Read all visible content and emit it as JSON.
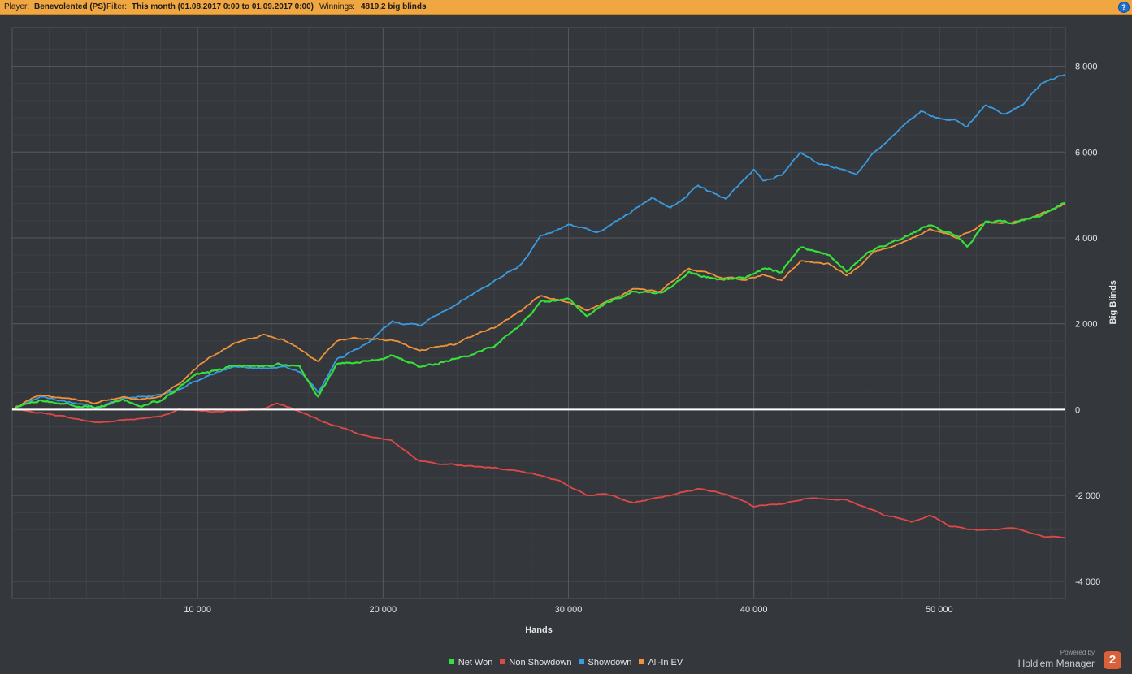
{
  "header": {
    "player_label": "Player:",
    "player_value": "Benevolented (PS)",
    "filter_label": "Filter:",
    "filter_value": "This month (01.08.2017 0:00 to 01.09.2017 0:00)",
    "winnings_label": "Winnings:",
    "winnings_value": "4819,2 big blinds",
    "help_symbol": "?",
    "help_icon": "help-circle-icon"
  },
  "branding": {
    "powered_by": "Powered by",
    "product": "Hold'em Manager",
    "logo_text": "2"
  },
  "colors": {
    "header_bg": "#f0a741",
    "plot_bg": "#34373b",
    "net_won": "#35e03a",
    "non_showdown": "#e04848",
    "showdown": "#3a9be0",
    "all_in_ev": "#f0923a",
    "zero_line": "#ffffff"
  },
  "chart_data": {
    "type": "line",
    "xlabel": "Hands",
    "ylabel": "Big Blinds",
    "xlim": [
      0,
      56800
    ],
    "ylim": [
      -4400,
      8900
    ],
    "x_ticks": [
      10000,
      20000,
      30000,
      40000,
      50000
    ],
    "x_tick_labels": [
      "10 000",
      "20 000",
      "30 000",
      "40 000",
      "50 000"
    ],
    "y_ticks": [
      8000,
      6000,
      4000,
      2000,
      0,
      -2000,
      -4000
    ],
    "y_tick_labels": [
      "8 000",
      "6 000",
      "4 000",
      "2 000",
      "0",
      "-2 000",
      "-4 000"
    ],
    "grid": true,
    "legend_position": "bottom-center",
    "series": [
      {
        "name": "Non Showdown",
        "color": "#e04848",
        "x": [
          0,
          2000,
          4500,
          7000,
          8000,
          9000,
          10500,
          12000,
          13500,
          14300,
          15000,
          17000,
          19000,
          20500,
          22000,
          24000,
          26000,
          28000,
          29500,
          31000,
          32000,
          33500,
          35000,
          37000,
          38500,
          40000,
          41500,
          43000,
          45000,
          47000,
          48500,
          49500,
          50500,
          52000,
          54000,
          55500,
          56800
        ],
        "values": [
          0,
          -100,
          -300,
          -200,
          -150,
          0,
          -50,
          -20,
          0,
          150,
          50,
          -300,
          -600,
          -750,
          -1200,
          -1300,
          -1350,
          -1500,
          -1650,
          -2000,
          -1950,
          -2150,
          -2050,
          -1850,
          -1950,
          -2250,
          -2200,
          -2050,
          -2100,
          -2450,
          -2600,
          -2450,
          -2700,
          -2800,
          -2750,
          -2950,
          -3000
        ]
      },
      {
        "name": "Showdown",
        "color": "#3a9be0",
        "x": [
          0,
          1500,
          3000,
          4500,
          6000,
          7000,
          8000,
          9000,
          10500,
          12000,
          13500,
          14500,
          15500,
          16500,
          17500,
          19000,
          20500,
          22000,
          24000,
          26000,
          27500,
          28500,
          30000,
          31500,
          33000,
          34500,
          35500,
          37000,
          38500,
          40000,
          40500,
          41500,
          42500,
          43500,
          44500,
          45500,
          46500,
          48000,
          49000,
          50000,
          51000,
          51500,
          52500,
          53500,
          54500,
          55500,
          56800
        ],
        "values": [
          0,
          300,
          200,
          50,
          250,
          300,
          350,
          500,
          800,
          1000,
          950,
          1000,
          900,
          400,
          1150,
          1500,
          2050,
          2000,
          2500,
          3000,
          3400,
          4000,
          4300,
          4150,
          4500,
          4950,
          4700,
          5200,
          4900,
          5600,
          5350,
          5500,
          5950,
          5700,
          5650,
          5500,
          6000,
          6600,
          6950,
          6800,
          6700,
          6600,
          7100,
          6900,
          7100,
          7600,
          7800
        ]
      },
      {
        "name": "All-In EV",
        "color": "#f0923a",
        "x": [
          0,
          1500,
          3000,
          4500,
          6000,
          7000,
          8000,
          9000,
          10000,
          11000,
          12000,
          13500,
          14500,
          15500,
          16500,
          17500,
          19000,
          20500,
          22000,
          24000,
          26000,
          27500,
          28500,
          30000,
          31000,
          32000,
          33500,
          35000,
          36500,
          38000,
          39500,
          40500,
          41500,
          42500,
          44000,
          45000,
          46500,
          48000,
          49500,
          51000,
          52500,
          54000,
          55500,
          56800
        ],
        "values": [
          0,
          350,
          250,
          150,
          300,
          250,
          300,
          600,
          1000,
          1300,
          1550,
          1750,
          1650,
          1400,
          1150,
          1600,
          1650,
          1600,
          1400,
          1550,
          1900,
          2300,
          2650,
          2500,
          2300,
          2500,
          2800,
          2750,
          3300,
          3100,
          3000,
          3150,
          3000,
          3450,
          3400,
          3100,
          3650,
          3900,
          4200,
          4000,
          4350,
          4350,
          4550,
          4800
        ]
      },
      {
        "name": "Net Won",
        "color": "#35e03a",
        "x": [
          0,
          1500,
          3000,
          4500,
          6000,
          7000,
          8000,
          9000,
          10000,
          11000,
          12000,
          13500,
          14500,
          15500,
          16500,
          17500,
          19000,
          20500,
          22000,
          24000,
          26000,
          27500,
          28500,
          30000,
          31000,
          32000,
          33500,
          35000,
          36500,
          38000,
          39500,
          40500,
          41500,
          42500,
          44000,
          45000,
          46500,
          48000,
          49500,
          51000,
          51500,
          52500,
          54000,
          55500,
          56800
        ],
        "values": [
          0,
          250,
          150,
          50,
          200,
          100,
          200,
          500,
          800,
          900,
          1050,
          1000,
          1050,
          950,
          300,
          1050,
          1150,
          1250,
          1000,
          1200,
          1500,
          2000,
          2550,
          2550,
          2200,
          2450,
          2750,
          2700,
          3200,
          3050,
          3050,
          3300,
          3200,
          3800,
          3600,
          3250,
          3750,
          4000,
          4300,
          4000,
          3800,
          4350,
          4350,
          4550,
          4820
        ]
      }
    ]
  }
}
